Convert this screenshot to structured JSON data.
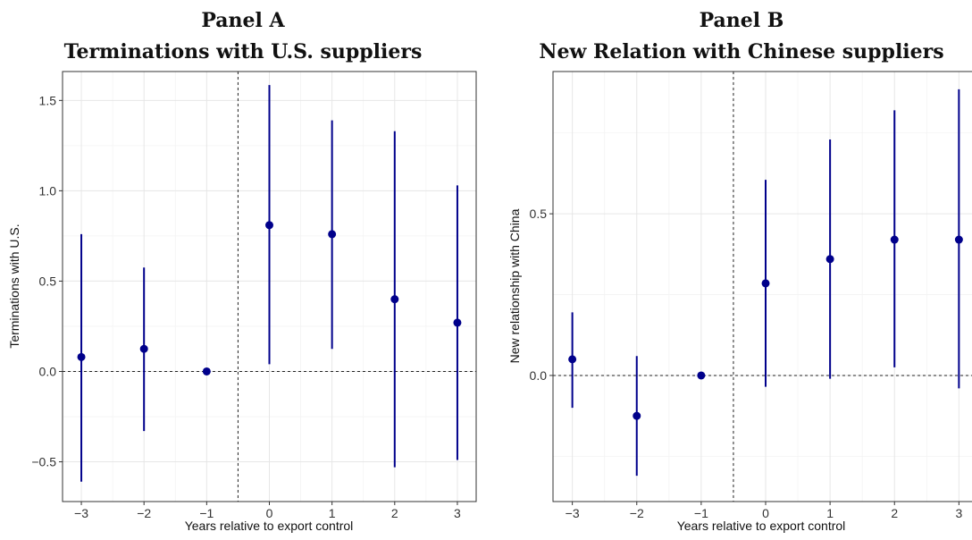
{
  "chart_data": [
    {
      "type": "scatter",
      "panel_label": "Panel A",
      "title": "Terminations with U.S. suppliers",
      "xlabel": "Years relative to export control",
      "ylabel": "Terminations with U.S.",
      "x": [
        -3,
        -2,
        -1,
        0,
        1,
        2,
        3
      ],
      "y": [
        0.08,
        0.125,
        0.0,
        0.81,
        0.76,
        0.4,
        0.27
      ],
      "ci_low": [
        -0.61,
        -0.33,
        0.0,
        0.04,
        0.125,
        -0.53,
        -0.49
      ],
      "ci_high": [
        0.76,
        0.575,
        0.0,
        1.585,
        1.39,
        1.33,
        1.03
      ],
      "xlim": [
        -3.3,
        3.3
      ],
      "ylim": [
        -0.72,
        1.66
      ],
      "xticks": [
        -3,
        -2,
        -1,
        0,
        1,
        2,
        3
      ],
      "xtick_labels": [
        "−3",
        "−2",
        "−1",
        "0",
        "1",
        "2",
        "3"
      ],
      "yticks": [
        -0.5,
        0.0,
        0.5,
        1.0,
        1.5
      ],
      "ytick_labels": [
        "−0.5",
        "0.0",
        "0.5",
        "1.0",
        "1.5"
      ],
      "hline": 0,
      "vline": -0.5,
      "grid": true
    },
    {
      "type": "scatter",
      "panel_label": "Panel B",
      "title": "New Relation with Chinese suppliers",
      "xlabel": "Years relative to export control",
      "ylabel": "New relationship with China",
      "x": [
        -3,
        -2,
        -1,
        0,
        1,
        2,
        3
      ],
      "y": [
        0.05,
        -0.125,
        0.0,
        0.285,
        0.36,
        0.42,
        0.42
      ],
      "ci_low": [
        -0.1,
        -0.31,
        0.0,
        -0.035,
        -0.01,
        0.025,
        -0.04
      ],
      "ci_high": [
        0.195,
        0.06,
        0.0,
        0.605,
        0.73,
        0.82,
        0.885
      ],
      "xlim": [
        -3.3,
        3.3
      ],
      "ylim": [
        -0.39,
        0.94
      ],
      "xticks": [
        -3,
        -2,
        -1,
        0,
        1,
        2,
        3
      ],
      "xtick_labels": [
        "−3",
        "−2",
        "−1",
        "0",
        "1",
        "2",
        "3"
      ],
      "yticks": [
        0.0,
        0.5
      ],
      "ytick_labels": [
        "0.0",
        "0.5"
      ],
      "hline": 0,
      "vline": -0.5,
      "grid": true
    }
  ]
}
